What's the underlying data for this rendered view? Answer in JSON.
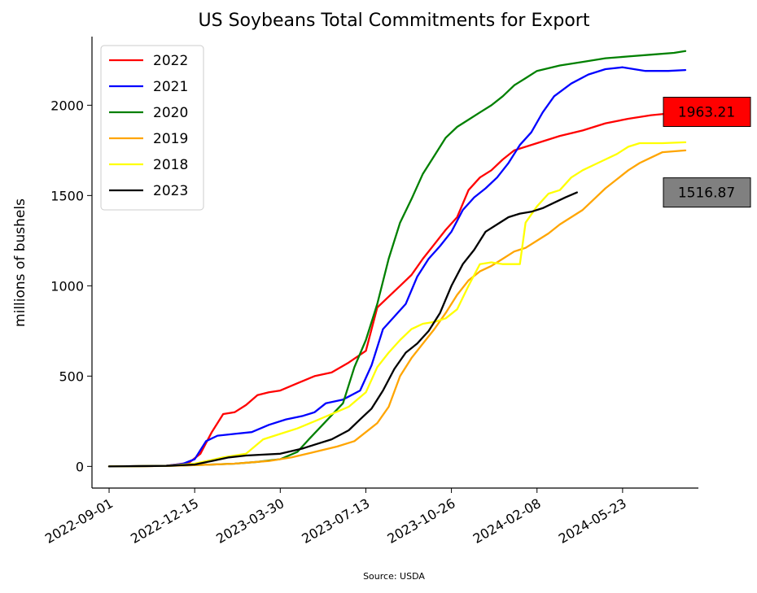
{
  "chart_data": {
    "type": "line",
    "title": "US Soybeans Total Commitments for Export",
    "xlabel": "",
    "ylabel": "millions of bushels",
    "source": "Source: USDA",
    "x_tick_labels": [
      "2022-09-01",
      "2022-12-15",
      "2023-03-30",
      "2023-07-13",
      "2023-10-26",
      "2024-02-08",
      "2024-05-23"
    ],
    "xlim": [
      "2022-08-11",
      "2024-08-24"
    ],
    "y_ticks": [
      0,
      500,
      1000,
      1500,
      2000
    ],
    "ylim": [
      -120,
      2380
    ],
    "grid": false,
    "legend_position": "top-left",
    "series": [
      {
        "name": "2022",
        "color": "#ff0000",
        "points": [
          [
            "2022-09-01",
            0
          ],
          [
            "2022-11-10",
            3
          ],
          [
            "2022-12-08",
            20
          ],
          [
            "2022-12-22",
            70
          ],
          [
            "2023-01-05",
            190
          ],
          [
            "2023-01-19",
            290
          ],
          [
            "2023-02-02",
            300
          ],
          [
            "2023-02-16",
            340
          ],
          [
            "2023-03-02",
            395
          ],
          [
            "2023-03-16",
            410
          ],
          [
            "2023-03-30",
            420
          ],
          [
            "2023-04-20",
            460
          ],
          [
            "2023-05-11",
            500
          ],
          [
            "2023-06-01",
            520
          ],
          [
            "2023-06-22",
            575
          ],
          [
            "2023-07-13",
            640
          ],
          [
            "2023-07-27",
            880
          ],
          [
            "2023-08-10",
            940
          ],
          [
            "2023-08-24",
            1000
          ],
          [
            "2023-09-07",
            1060
          ],
          [
            "2023-09-21",
            1150
          ],
          [
            "2023-10-05",
            1230
          ],
          [
            "2023-10-19",
            1310
          ],
          [
            "2023-11-02",
            1380
          ],
          [
            "2023-11-16",
            1530
          ],
          [
            "2023-11-30",
            1600
          ],
          [
            "2023-12-14",
            1640
          ],
          [
            "2023-12-28",
            1700
          ],
          [
            "2024-01-11",
            1750
          ],
          [
            "2024-02-08",
            1790
          ],
          [
            "2024-03-07",
            1830
          ],
          [
            "2024-04-04",
            1860
          ],
          [
            "2024-05-02",
            1900
          ],
          [
            "2024-05-30",
            1925
          ],
          [
            "2024-06-27",
            1945
          ],
          [
            "2024-08-08",
            1963.21
          ]
        ]
      },
      {
        "name": "2021",
        "color": "#0000ff",
        "points": [
          [
            "2022-09-01",
            0
          ],
          [
            "2022-11-10",
            3
          ],
          [
            "2022-12-01",
            15
          ],
          [
            "2022-12-15",
            40
          ],
          [
            "2022-12-29",
            140
          ],
          [
            "2023-01-12",
            170
          ],
          [
            "2023-02-02",
            180
          ],
          [
            "2023-02-23",
            190
          ],
          [
            "2023-03-16",
            230
          ],
          [
            "2023-04-06",
            260
          ],
          [
            "2023-04-27",
            280
          ],
          [
            "2023-05-11",
            300
          ],
          [
            "2023-05-25",
            350
          ],
          [
            "2023-06-15",
            370
          ],
          [
            "2023-07-06",
            420
          ],
          [
            "2023-07-20",
            560
          ],
          [
            "2023-08-03",
            760
          ],
          [
            "2023-08-17",
            830
          ],
          [
            "2023-08-31",
            900
          ],
          [
            "2023-09-14",
            1050
          ],
          [
            "2023-09-28",
            1150
          ],
          [
            "2023-10-12",
            1220
          ],
          [
            "2023-10-26",
            1300
          ],
          [
            "2023-11-09",
            1420
          ],
          [
            "2023-11-23",
            1490
          ],
          [
            "2023-12-07",
            1540
          ],
          [
            "2023-12-21",
            1600
          ],
          [
            "2024-01-04",
            1680
          ],
          [
            "2024-01-18",
            1780
          ],
          [
            "2024-02-01",
            1850
          ],
          [
            "2024-02-15",
            1960
          ],
          [
            "2024-02-29",
            2050
          ],
          [
            "2024-03-21",
            2120
          ],
          [
            "2024-04-11",
            2170
          ],
          [
            "2024-05-02",
            2200
          ],
          [
            "2024-05-23",
            2210
          ],
          [
            "2024-06-20",
            2190
          ],
          [
            "2024-07-18",
            2190
          ],
          [
            "2024-08-08",
            2195
          ]
        ]
      },
      {
        "name": "2020",
        "color": "#008000",
        "points": [
          [
            "2022-09-01",
            0
          ],
          [
            "2022-11-10",
            3
          ],
          [
            "2022-12-22",
            8
          ],
          [
            "2023-02-02",
            15
          ],
          [
            "2023-03-02",
            25
          ],
          [
            "2023-03-30",
            40
          ],
          [
            "2023-04-20",
            80
          ],
          [
            "2023-05-04",
            150
          ],
          [
            "2023-05-25",
            250
          ],
          [
            "2023-06-15",
            350
          ],
          [
            "2023-06-29",
            550
          ],
          [
            "2023-07-13",
            700
          ],
          [
            "2023-07-27",
            900
          ],
          [
            "2023-08-10",
            1150
          ],
          [
            "2023-08-24",
            1350
          ],
          [
            "2023-09-07",
            1480
          ],
          [
            "2023-09-21",
            1620
          ],
          [
            "2023-10-05",
            1720
          ],
          [
            "2023-10-19",
            1820
          ],
          [
            "2023-11-02",
            1880
          ],
          [
            "2023-11-16",
            1920
          ],
          [
            "2023-11-30",
            1960
          ],
          [
            "2023-12-14",
            2000
          ],
          [
            "2023-12-28",
            2050
          ],
          [
            "2024-01-11",
            2110
          ],
          [
            "2024-01-25",
            2150
          ],
          [
            "2024-02-08",
            2190
          ],
          [
            "2024-03-07",
            2220
          ],
          [
            "2024-04-04",
            2240
          ],
          [
            "2024-05-02",
            2260
          ],
          [
            "2024-05-30",
            2270
          ],
          [
            "2024-06-27",
            2280
          ],
          [
            "2024-07-25",
            2290
          ],
          [
            "2024-08-08",
            2300
          ]
        ]
      },
      {
        "name": "2019",
        "color": "#ffa500",
        "points": [
          [
            "2022-09-01",
            0
          ],
          [
            "2022-11-10",
            2
          ],
          [
            "2022-12-22",
            8
          ],
          [
            "2023-02-02",
            15
          ],
          [
            "2023-03-16",
            30
          ],
          [
            "2023-04-13",
            50
          ],
          [
            "2023-05-11",
            80
          ],
          [
            "2023-06-08",
            110
          ],
          [
            "2023-06-29",
            140
          ],
          [
            "2023-07-13",
            190
          ],
          [
            "2023-07-27",
            240
          ],
          [
            "2023-08-10",
            330
          ],
          [
            "2023-08-24",
            500
          ],
          [
            "2023-09-07",
            600
          ],
          [
            "2023-09-21",
            680
          ],
          [
            "2023-10-05",
            760
          ],
          [
            "2023-10-19",
            850
          ],
          [
            "2023-11-02",
            950
          ],
          [
            "2023-11-16",
            1030
          ],
          [
            "2023-11-30",
            1080
          ],
          [
            "2023-12-14",
            1110
          ],
          [
            "2023-12-28",
            1150
          ],
          [
            "2024-01-11",
            1190
          ],
          [
            "2024-01-25",
            1210
          ],
          [
            "2024-02-08",
            1250
          ],
          [
            "2024-02-22",
            1290
          ],
          [
            "2024-03-07",
            1340
          ],
          [
            "2024-03-21",
            1380
          ],
          [
            "2024-04-04",
            1420
          ],
          [
            "2024-04-18",
            1480
          ],
          [
            "2024-05-02",
            1540
          ],
          [
            "2024-05-16",
            1590
          ],
          [
            "2024-05-30",
            1640
          ],
          [
            "2024-06-13",
            1680
          ],
          [
            "2024-06-27",
            1710
          ],
          [
            "2024-07-11",
            1740
          ],
          [
            "2024-08-08",
            1750
          ]
        ]
      },
      {
        "name": "2018",
        "color": "#ffff00",
        "points": [
          [
            "2022-09-01",
            0
          ],
          [
            "2022-11-10",
            3
          ],
          [
            "2022-12-15",
            15
          ],
          [
            "2023-01-19",
            50
          ],
          [
            "2023-02-16",
            70
          ],
          [
            "2023-03-09",
            150
          ],
          [
            "2023-03-30",
            180
          ],
          [
            "2023-04-20",
            210
          ],
          [
            "2023-05-11",
            250
          ],
          [
            "2023-06-01",
            290
          ],
          [
            "2023-06-22",
            330
          ],
          [
            "2023-07-13",
            410
          ],
          [
            "2023-07-27",
            550
          ],
          [
            "2023-08-10",
            630
          ],
          [
            "2023-08-24",
            700
          ],
          [
            "2023-09-07",
            760
          ],
          [
            "2023-09-21",
            790
          ],
          [
            "2023-10-05",
            800
          ],
          [
            "2023-10-19",
            820
          ],
          [
            "2023-11-02",
            870
          ],
          [
            "2023-11-16",
            1000
          ],
          [
            "2023-11-30",
            1120
          ],
          [
            "2023-12-14",
            1130
          ],
          [
            "2023-12-28",
            1120
          ],
          [
            "2024-01-18",
            1120
          ],
          [
            "2024-01-25",
            1350
          ],
          [
            "2024-02-08",
            1440
          ],
          [
            "2024-02-22",
            1510
          ],
          [
            "2024-03-07",
            1530
          ],
          [
            "2024-03-21",
            1600
          ],
          [
            "2024-04-04",
            1640
          ],
          [
            "2024-04-18",
            1670
          ],
          [
            "2024-05-02",
            1700
          ],
          [
            "2024-05-16",
            1730
          ],
          [
            "2024-05-30",
            1770
          ],
          [
            "2024-06-13",
            1790
          ],
          [
            "2024-07-11",
            1790
          ],
          [
            "2024-08-08",
            1795
          ]
        ]
      },
      {
        "name": "2023",
        "color": "#000000",
        "points": [
          [
            "2022-09-01",
            0
          ],
          [
            "2022-11-10",
            3
          ],
          [
            "2022-12-15",
            10
          ],
          [
            "2023-01-05",
            30
          ],
          [
            "2023-01-26",
            50
          ],
          [
            "2023-02-16",
            60
          ],
          [
            "2023-03-09",
            65
          ],
          [
            "2023-03-30",
            70
          ],
          [
            "2023-04-13",
            85
          ],
          [
            "2023-04-27",
            100
          ],
          [
            "2023-05-11",
            120
          ],
          [
            "2023-06-01",
            150
          ],
          [
            "2023-06-22",
            200
          ],
          [
            "2023-07-06",
            260
          ],
          [
            "2023-07-20",
            320
          ],
          [
            "2023-08-03",
            420
          ],
          [
            "2023-08-17",
            540
          ],
          [
            "2023-08-31",
            630
          ],
          [
            "2023-09-14",
            680
          ],
          [
            "2023-09-28",
            750
          ],
          [
            "2023-10-12",
            850
          ],
          [
            "2023-10-26",
            1000
          ],
          [
            "2023-11-09",
            1120
          ],
          [
            "2023-11-23",
            1200
          ],
          [
            "2023-12-07",
            1300
          ],
          [
            "2023-12-21",
            1340
          ],
          [
            "2024-01-04",
            1380
          ],
          [
            "2024-01-18",
            1400
          ],
          [
            "2024-02-01",
            1410
          ],
          [
            "2024-02-15",
            1430
          ],
          [
            "2024-02-29",
            1460
          ],
          [
            "2024-03-14",
            1490
          ],
          [
            "2024-03-28",
            1516.87
          ]
        ]
      }
    ],
    "callouts": [
      {
        "label": "1963.21",
        "y": 1963.21,
        "fill": "#ff0000"
      },
      {
        "label": "1516.87",
        "y": 1516.87,
        "fill": "#808080"
      }
    ]
  }
}
